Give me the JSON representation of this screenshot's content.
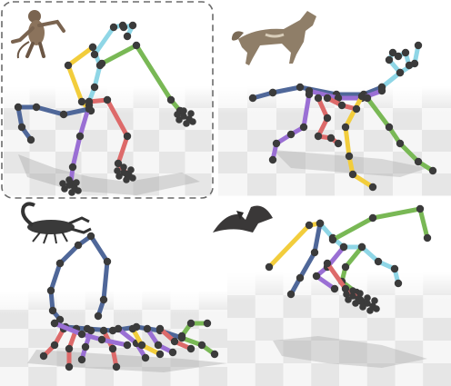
{
  "panels": [
    {
      "id": "monkey",
      "subject": "monkey",
      "highlighted": true
    },
    {
      "id": "wolf",
      "subject": "wolf",
      "highlighted": false
    },
    {
      "id": "scorpion",
      "subject": "scorpion",
      "highlighted": false
    },
    {
      "id": "bird",
      "subject": "bird",
      "highlighted": false
    }
  ],
  "colors": {
    "yellow": "#f2cd3c",
    "cyan": "#8fd6e6",
    "green": "#79b855",
    "red": "#dd6a6a",
    "purple": "#9a6fd4",
    "blue": "#4f6799",
    "joint": "#3b3b3b",
    "dashed_frame": "#6a6a6a",
    "floor_light": "#f6f6f6",
    "floor_dark": "#e6e6e6"
  }
}
